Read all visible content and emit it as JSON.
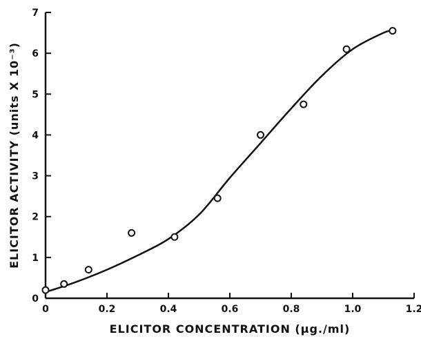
{
  "chart_data": {
    "type": "scatter",
    "xlabel": "ELICITOR CONCENTRATION (μg./ml)",
    "ylabel": "ELICITOR ACTIVITY (units X 10⁻³)",
    "xlim": [
      0,
      1.2
    ],
    "ylim": [
      0,
      7
    ],
    "x_ticks": [
      "0",
      "0.2",
      "0.4",
      "0.6",
      "0.8",
      "1.0",
      "1.2"
    ],
    "y_ticks": [
      "0",
      "1",
      "2",
      "3",
      "4",
      "5",
      "6",
      "7"
    ],
    "x_tick_values": [
      0,
      0.2,
      0.4,
      0.6,
      0.8,
      1.0,
      1.2
    ],
    "y_tick_values": [
      0,
      1,
      2,
      3,
      4,
      5,
      6,
      7
    ],
    "grid": false,
    "series": [
      {
        "marker": "open-circle",
        "x": [
          0.0,
          0.06,
          0.14,
          0.28,
          0.42,
          0.56,
          0.7,
          0.84,
          0.98,
          1.13
        ],
        "y": [
          0.2,
          0.35,
          0.7,
          1.6,
          1.5,
          2.45,
          4.0,
          4.75,
          6.1,
          6.55
        ]
      }
    ],
    "fit_curve": {
      "x": [
        0.0,
        0.1,
        0.2,
        0.3,
        0.4,
        0.5,
        0.6,
        0.7,
        0.8,
        0.9,
        1.0,
        1.1,
        1.13
      ],
      "y": [
        0.15,
        0.4,
        0.7,
        1.05,
        1.45,
        2.05,
        2.95,
        3.8,
        4.65,
        5.45,
        6.1,
        6.5,
        6.55
      ]
    }
  }
}
